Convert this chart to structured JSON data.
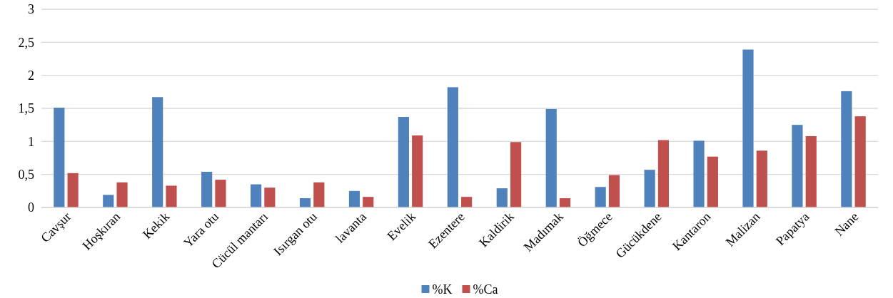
{
  "chart_data": {
    "type": "bar",
    "categories": [
      "Cavşur",
      "Hoşkıran",
      "Kekik",
      "Yara otu",
      "Cücül mantarı",
      "Isırgan otu",
      "lavanta",
      "Evelik",
      "Ezentere",
      "Kaldirik",
      "Madımak",
      "Öğmece",
      "Gücükdene",
      "Kantaron",
      "Malizan",
      "Papatya",
      "Nane"
    ],
    "series": [
      {
        "name": "%K",
        "color": "#4f81bd",
        "values": [
          1.51,
          0.19,
          1.67,
          0.54,
          0.35,
          0.14,
          0.25,
          1.37,
          1.82,
          0.29,
          1.49,
          0.31,
          0.57,
          1.01,
          2.39,
          1.25,
          1.76
        ]
      },
      {
        "name": "%Ca",
        "color": "#c0504d",
        "values": [
          0.52,
          0.38,
          0.33,
          0.42,
          0.3,
          0.38,
          0.16,
          1.09,
          0.16,
          0.99,
          0.14,
          0.49,
          1.02,
          0.77,
          0.86,
          1.08,
          1.38
        ]
      }
    ],
    "ylim": [
      0,
      3
    ],
    "yticks": [
      0,
      {
        "value": 0.5,
        "label": "0,5"
      },
      1,
      {
        "value": 1.5,
        "label": "1,5"
      },
      2,
      {
        "value": 2.5,
        "label": "2,5"
      },
      3
    ],
    "grid": "y",
    "legend": "bottom"
  }
}
